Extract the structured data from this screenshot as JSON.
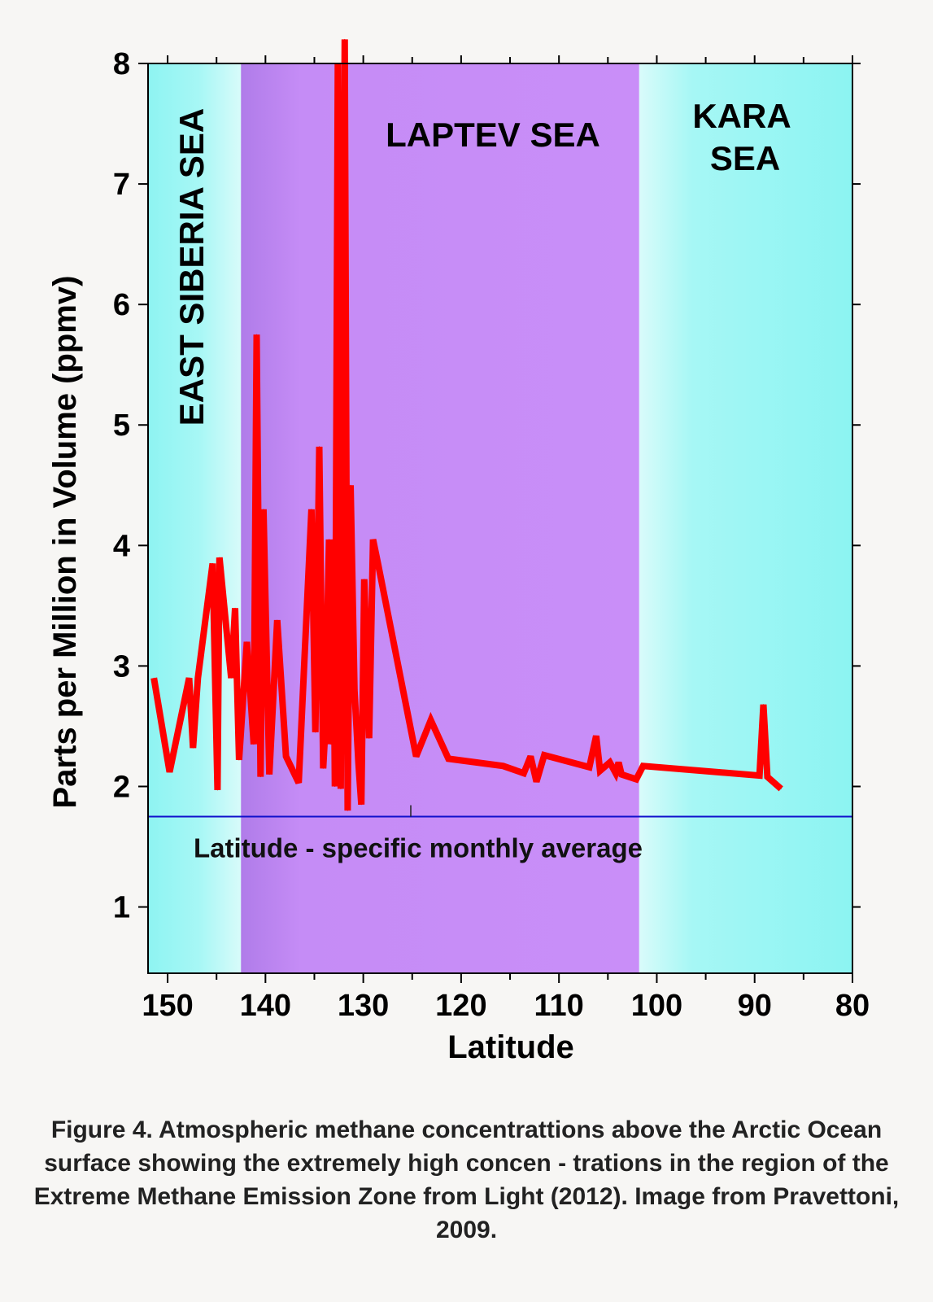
{
  "chart_data": {
    "type": "line",
    "xlabel": "Latitude",
    "ylabel": "Parts per Million in Volume (ppmv)",
    "xlim": [
      152,
      80
    ],
    "ylim": [
      0.45,
      8.0
    ],
    "x_reversed": true,
    "x_ticks": [
      150,
      140,
      130,
      120,
      110,
      100,
      90,
      80
    ],
    "y_ticks": [
      1,
      2,
      3,
      4,
      5,
      6,
      7,
      8
    ],
    "grid": false,
    "regions": [
      {
        "name": "EAST SIBERIA SEA",
        "from": 152,
        "to": 142.5,
        "color": "#8ef5f2",
        "label_orientation": "vertical"
      },
      {
        "name": "LAPTEV SEA",
        "from": 142.5,
        "to": 101.8,
        "color": "#c78cf7",
        "label_orientation": "horizontal"
      },
      {
        "name": "KARA SEA",
        "from": 101.8,
        "to": 80,
        "color": "#8ef5f2",
        "label_orientation": "horizontal"
      }
    ],
    "reference_line": {
      "label": "Latitude - specific monthly average",
      "value": 1.75,
      "color": "#1010cc"
    },
    "series": [
      {
        "color": "#ff0000",
        "x": [
          151.4,
          149.8,
          147.8,
          147.4,
          146.9,
          145.4,
          144.9,
          144.7,
          143.5,
          143.1,
          142.7,
          141.9,
          141.2,
          140.9,
          140.5,
          140.2,
          139.6,
          138.8,
          137.9,
          136.6,
          135.3,
          134.9,
          134.5,
          134.1,
          133.9,
          133.5,
          133.3,
          133.1,
          132.9,
          132.6,
          132.3,
          131.9,
          131.6,
          131.3,
          130.9,
          130.5,
          130.2,
          129.9,
          129.4,
          129.0,
          128.5,
          124.6,
          123.1,
          121.3,
          115.7,
          113.6,
          112.9,
          112.3,
          111.5,
          106.9,
          106.2,
          105.8,
          104.8,
          104.2,
          103.9,
          103.6,
          102.1,
          101.4,
          89.5,
          89.1,
          88.7,
          87.3
        ],
        "y": [
          2.9,
          2.12,
          2.9,
          2.32,
          2.9,
          3.85,
          1.97,
          3.9,
          2.9,
          3.48,
          2.22,
          3.2,
          2.35,
          5.75,
          2.08,
          4.3,
          2.1,
          3.38,
          2.25,
          2.03,
          4.3,
          2.45,
          4.82,
          2.15,
          2.45,
          4.05,
          2.35,
          4.05,
          2.0,
          8.0,
          1.98,
          8.2,
          1.8,
          4.5,
          2.8,
          2.2,
          1.85,
          3.72,
          2.4,
          4.05,
          3.85,
          2.25,
          2.55,
          2.23,
          2.17,
          2.11,
          2.25,
          2.04,
          2.26,
          2.16,
          2.42,
          2.13,
          2.2,
          2.11,
          2.2,
          2.1,
          2.06,
          2.17,
          2.09,
          2.68,
          2.08,
          1.98
        ]
      }
    ]
  },
  "caption": "Figure 4.  Atmospheric methane concentrattions above the Arctic Ocean surface showing the extremely high concen - trations in the region of the Extreme Methane Emission Zone from Light (2012). Image from Pravettoni, 2009."
}
